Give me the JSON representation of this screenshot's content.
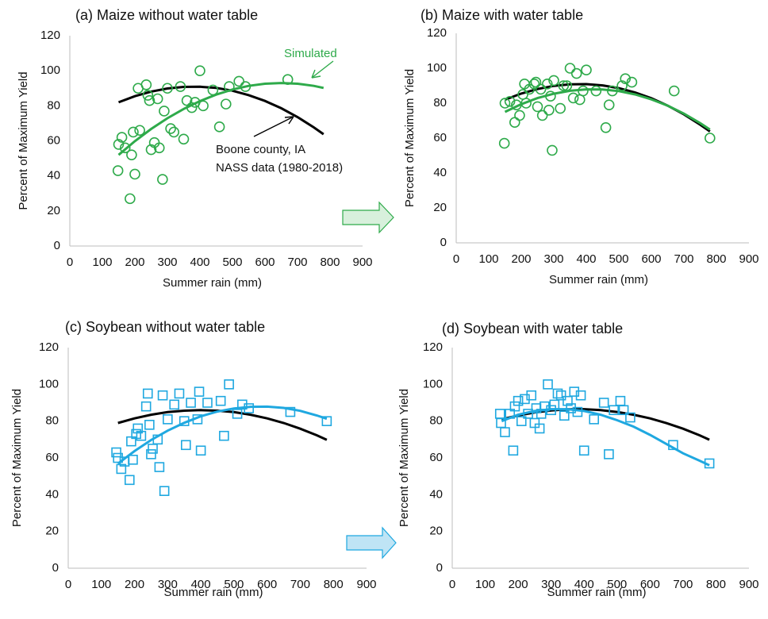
{
  "chart_data": [
    {
      "type": "scatter",
      "title": "(a) Maize without water table",
      "xlabel": "Summer rain (mm)",
      "ylabel": "Percent of Maximum Yield",
      "xlim": [
        0,
        900
      ],
      "xticks": [
        0,
        100,
        200,
        300,
        400,
        500,
        600,
        700,
        800,
        900
      ],
      "ylim": [
        0,
        120
      ],
      "yticks": [
        0,
        20,
        40,
        60,
        80,
        100,
        120
      ],
      "series": [
        {
          "color": "#2eaa4a",
          "marker": "circle",
          "x": [
            148,
            150,
            160,
            170,
            185,
            190,
            195,
            200,
            210,
            215,
            235,
            240,
            245,
            250,
            260,
            270,
            275,
            285,
            290,
            300,
            310,
            320,
            340,
            350,
            360,
            375,
            385,
            400,
            410,
            440,
            460,
            480,
            490,
            520,
            540,
            670
          ],
          "values": [
            43,
            58,
            62,
            56,
            27,
            52,
            65,
            41,
            90,
            66,
            92,
            86,
            83,
            55,
            59,
            84,
            56,
            38,
            77,
            90,
            67,
            65,
            91,
            61,
            83,
            79,
            82,
            100,
            80,
            89,
            68,
            81,
            91,
            94,
            91,
            95
          ]
        }
      ],
      "curves": [
        {
          "color": "#000000",
          "x": [
            150,
            200,
            250,
            300,
            350,
            400,
            450,
            500,
            550,
            600,
            650,
            700,
            750,
            780
          ],
          "values": [
            82,
            85.5,
            88.1,
            89.9,
            90.8,
            90.9,
            90.2,
            88.6,
            86.1,
            82.8,
            78.6,
            73.6,
            67.7,
            63.8
          ]
        },
        {
          "color": "#2eaa4a",
          "x": [
            150,
            200,
            250,
            300,
            350,
            400,
            450,
            500,
            550,
            600,
            650,
            700,
            750,
            780
          ],
          "values": [
            52,
            59.8,
            66.8,
            72.9,
            78.2,
            82.7,
            86.4,
            89.3,
            91.4,
            92.6,
            93,
            92.6,
            91.4,
            90.2
          ]
        }
      ],
      "annotations": [
        "Simulated",
        "Boone county, IA",
        "NASS data (1980-2018)"
      ]
    },
    {
      "type": "scatter",
      "title": "(b) Maize with water table",
      "xlabel": "Summer rain (mm)",
      "ylabel": "Percent of Maximum Yield",
      "xlim": [
        0,
        900
      ],
      "xticks": [
        0,
        100,
        200,
        300,
        400,
        500,
        600,
        700,
        800,
        900
      ],
      "ylim": [
        0,
        120
      ],
      "yticks": [
        0,
        20,
        40,
        60,
        80,
        100,
        120
      ],
      "series": [
        {
          "color": "#2eaa4a",
          "marker": "circle",
          "x": [
            148,
            150,
            165,
            180,
            185,
            195,
            205,
            210,
            215,
            225,
            240,
            245,
            250,
            260,
            265,
            280,
            285,
            290,
            295,
            300,
            320,
            330,
            340,
            350,
            360,
            370,
            380,
            390,
            400,
            430,
            460,
            470,
            480,
            510,
            520,
            540,
            670,
            780
          ],
          "values": [
            57,
            80,
            81,
            69,
            79,
            73,
            85,
            91,
            80,
            88,
            91,
            92,
            78,
            88,
            73,
            91,
            76,
            84,
            53,
            93,
            77,
            90,
            90,
            100,
            83,
            97,
            82,
            87,
            99,
            87,
            66,
            79,
            87,
            90,
            94,
            92,
            87,
            60
          ]
        }
      ],
      "curves": [
        {
          "color": "#000000",
          "x": [
            150,
            200,
            250,
            300,
            350,
            400,
            450,
            500,
            550,
            600,
            650,
            700,
            750,
            780
          ],
          "values": [
            82,
            85.5,
            88.1,
            89.9,
            90.8,
            90.9,
            90.2,
            88.6,
            86.1,
            82.8,
            78.6,
            73.6,
            67.7,
            63.8
          ]
        },
        {
          "color": "#2eaa4a",
          "x": [
            150,
            200,
            250,
            300,
            350,
            400,
            450,
            500,
            550,
            600,
            650,
            700,
            750,
            780
          ],
          "values": [
            75,
            79.4,
            82.9,
            85.4,
            87.1,
            87.9,
            87.8,
            86.9,
            85,
            82.2,
            78.6,
            74,
            68.6,
            64.9
          ]
        }
      ]
    },
    {
      "type": "scatter",
      "title": "(c)  Soybean without water table",
      "xlabel": "Summer rain (mm)",
      "ylabel": "Percent of Maximum Yield",
      "xlim": [
        0,
        900
      ],
      "xticks": [
        0,
        100,
        200,
        300,
        400,
        500,
        600,
        700,
        800,
        900
      ],
      "ylim": [
        0,
        120
      ],
      "yticks": [
        0,
        20,
        40,
        60,
        80,
        100,
        120
      ],
      "series": [
        {
          "color": "#1fa8e0",
          "marker": "square",
          "x": [
            145,
            150,
            160,
            170,
            185,
            190,
            195,
            205,
            210,
            220,
            235,
            240,
            245,
            250,
            255,
            270,
            275,
            285,
            290,
            300,
            320,
            335,
            350,
            355,
            370,
            390,
            395,
            400,
            420,
            460,
            470,
            485,
            510,
            525,
            545,
            670,
            780
          ],
          "values": [
            63,
            60,
            54,
            58,
            48,
            69,
            59,
            73,
            76,
            72,
            88,
            95,
            78,
            62,
            65,
            70,
            55,
            94,
            42,
            81,
            89,
            95,
            80,
            67,
            90,
            81,
            96,
            64,
            90,
            91,
            72,
            100,
            84,
            89,
            87,
            85,
            80
          ]
        }
      ],
      "curves": [
        {
          "color": "#000000",
          "x": [
            150,
            200,
            250,
            300,
            350,
            400,
            450,
            500,
            550,
            600,
            650,
            700,
            750,
            780
          ],
          "values": [
            79,
            81.5,
            83.5,
            84.9,
            85.7,
            86,
            85.7,
            84.9,
            83.5,
            81.5,
            79,
            75.9,
            72.3,
            69.8
          ]
        },
        {
          "color": "#1fa8e0",
          "x": [
            150,
            200,
            250,
            300,
            350,
            400,
            450,
            500,
            550,
            600,
            650,
            700,
            750,
            780
          ],
          "values": [
            56.9,
            63.7,
            69.7,
            74.8,
            79.1,
            82.6,
            85.2,
            86.9,
            87.8,
            87.9,
            87.2,
            85.6,
            83.1,
            81.3
          ]
        }
      ]
    },
    {
      "type": "scatter",
      "title": "(d)  Soybean with water table",
      "xlabel": "Summer rain (mm)",
      "ylabel": "Percent of Maximum Yield",
      "xlim": [
        0,
        900
      ],
      "xticks": [
        0,
        100,
        200,
        300,
        400,
        500,
        600,
        700,
        800,
        900
      ],
      "ylim": [
        0,
        120
      ],
      "yticks": [
        0,
        20,
        40,
        60,
        80,
        100,
        120
      ],
      "series": [
        {
          "color": "#1fa8e0",
          "marker": "square",
          "x": [
            145,
            148,
            160,
            175,
            185,
            190,
            200,
            210,
            220,
            230,
            240,
            250,
            255,
            265,
            270,
            280,
            290,
            300,
            310,
            320,
            330,
            340,
            350,
            360,
            370,
            380,
            390,
            400,
            430,
            460,
            475,
            490,
            510,
            520,
            540,
            670,
            780
          ],
          "values": [
            84,
            79,
            74,
            84,
            64,
            88,
            91,
            80,
            92,
            84,
            94,
            79,
            87,
            76,
            84,
            88,
            100,
            86,
            89,
            95,
            94,
            83,
            91,
            87,
            96,
            85,
            94,
            64,
            81,
            90,
            62,
            86,
            91,
            86,
            82,
            67,
            57
          ]
        }
      ],
      "curves": [
        {
          "color": "#000000",
          "x": [
            150,
            200,
            250,
            300,
            350,
            400,
            450,
            500,
            550,
            600,
            650,
            700,
            750,
            780
          ],
          "values": [
            81,
            83.1,
            84.7,
            85.8,
            86.4,
            86.5,
            86,
            85,
            83.5,
            81.5,
            78.9,
            75.9,
            72.3,
            69.9
          ]
        },
        {
          "color": "#1fa8e0",
          "x": [
            150,
            200,
            250,
            300,
            350,
            400,
            450,
            500,
            550,
            600,
            650,
            700,
            750,
            780
          ],
          "values": [
            80,
            83.5,
            85.5,
            86.5,
            86.5,
            85.5,
            83.5,
            80.5,
            77,
            72.5,
            67.5,
            62.5,
            58.5,
            56
          ]
        }
      ]
    }
  ]
}
